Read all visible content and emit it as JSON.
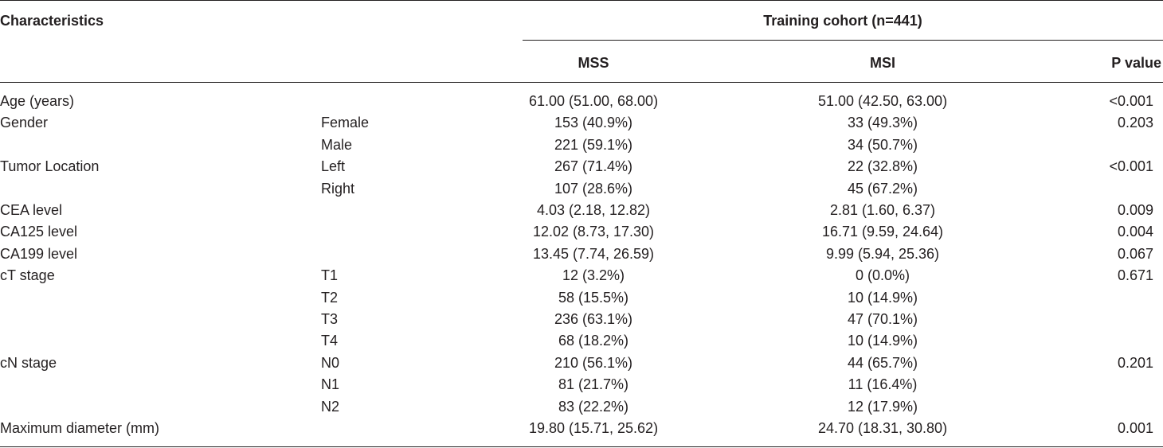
{
  "table": {
    "header": {
      "characteristics": "Characteristics",
      "cohort": "Training cohort (n=441)",
      "col_mss": "MSS",
      "col_msi": "MSI",
      "col_p": "P value"
    },
    "rows": [
      {
        "characteristic": "Age (years)",
        "sub": "",
        "mss": "61.00 (51.00, 68.00)",
        "msi": "51.00 (42.50, 63.00)",
        "p": "<0.001"
      },
      {
        "characteristic": "Gender",
        "sub": "Female",
        "mss": "153 (40.9%)",
        "msi": "33 (49.3%)",
        "p": "0.203"
      },
      {
        "characteristic": "",
        "sub": "Male",
        "mss": "221 (59.1%)",
        "msi": "34 (50.7%)",
        "p": ""
      },
      {
        "characteristic": "Tumor Location",
        "sub": "Left",
        "mss": "267 (71.4%)",
        "msi": "22 (32.8%)",
        "p": "<0.001"
      },
      {
        "characteristic": "",
        "sub": "Right",
        "mss": "107 (28.6%)",
        "msi": "45 (67.2%)",
        "p": ""
      },
      {
        "characteristic": "CEA level",
        "sub": "",
        "mss": "4.03 (2.18, 12.82)",
        "msi": "2.81 (1.60, 6.37)",
        "p": "0.009"
      },
      {
        "characteristic": "CA125 level",
        "sub": "",
        "mss": "12.02 (8.73, 17.30)",
        "msi": "16.71 (9.59, 24.64)",
        "p": "0.004"
      },
      {
        "characteristic": "CA199 level",
        "sub": "",
        "mss": "13.45 (7.74, 26.59)",
        "msi": "9.99 (5.94, 25.36)",
        "p": "0.067"
      },
      {
        "characteristic": "cT stage",
        "sub": "T1",
        "mss": "12 (3.2%)",
        "msi": "0 (0.0%)",
        "p": "0.671"
      },
      {
        "characteristic": "",
        "sub": "T2",
        "mss": "58 (15.5%)",
        "msi": "10 (14.9%)",
        "p": ""
      },
      {
        "characteristic": "",
        "sub": "T3",
        "mss": "236 (63.1%)",
        "msi": "47 (70.1%)",
        "p": ""
      },
      {
        "characteristic": "",
        "sub": "T4",
        "mss": "68 (18.2%)",
        "msi": "10 (14.9%)",
        "p": ""
      },
      {
        "characteristic": "cN stage",
        "sub": "N0",
        "mss": "210 (56.1%)",
        "msi": "44 (65.7%)",
        "p": "0.201"
      },
      {
        "characteristic": "",
        "sub": "N1",
        "mss": "81 (21.7%)",
        "msi": "11 (16.4%)",
        "p": ""
      },
      {
        "characteristic": "",
        "sub": "N2",
        "mss": "83 (22.2%)",
        "msi": "12 (17.9%)",
        "p": ""
      },
      {
        "characteristic": "Maximum diameter (mm)",
        "sub": "",
        "mss": "19.80 (15.71, 25.62)",
        "msi": "24.70 (18.31, 30.80)",
        "p": "0.001"
      }
    ]
  }
}
